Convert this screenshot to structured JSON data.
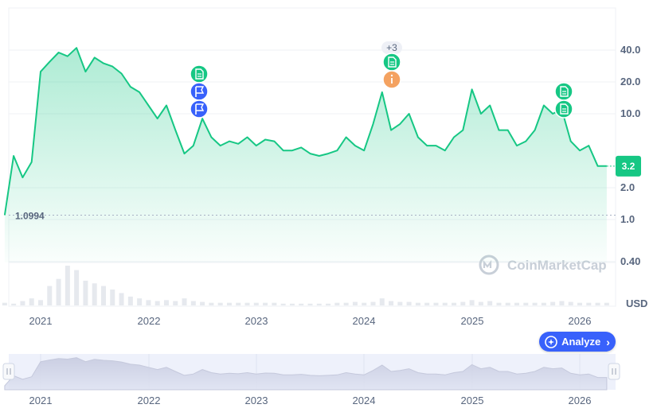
{
  "chart_data": {
    "type": "area",
    "currency": "USD",
    "y_scale": "log",
    "y_ticks": [
      "40.0",
      "20.0",
      "10.0",
      "2.0",
      "1.0",
      "0.40"
    ],
    "x_ticks": [
      "2021",
      "2022",
      "2023",
      "2024",
      "2025",
      "2026"
    ],
    "reference_line": {
      "value": 1.0994,
      "label": "1.0994"
    },
    "current_price": {
      "value": 3.2,
      "label": "3.2"
    },
    "series": [
      {
        "x": [
          "2020-09",
          "2020-10",
          "2020-11",
          "2020-12",
          "2021-01",
          "2021-02",
          "2021-03",
          "2021-04",
          "2021-05",
          "2021-06",
          "2021-07",
          "2021-08",
          "2021-09",
          "2021-10",
          "2021-11",
          "2021-12",
          "2022-01",
          "2022-02",
          "2022-03",
          "2022-04",
          "2022-05",
          "2022-06",
          "2022-07",
          "2022-08",
          "2022-09",
          "2022-10",
          "2022-11",
          "2022-12",
          "2023-01",
          "2023-02",
          "2023-03",
          "2023-04",
          "2023-05",
          "2023-06",
          "2023-07",
          "2023-08",
          "2023-09",
          "2023-10",
          "2023-11",
          "2023-12",
          "2024-01",
          "2024-02",
          "2024-03",
          "2024-04",
          "2024-05",
          "2024-06",
          "2024-07",
          "2024-08",
          "2024-09",
          "2024-10",
          "2024-11",
          "2024-12",
          "2025-01",
          "2025-02",
          "2025-03",
          "2025-04",
          "2025-05",
          "2025-06",
          "2025-07",
          "2025-08",
          "2025-09",
          "2025-10",
          "2025-11",
          "2025-12",
          "2026-01",
          "2026-02",
          "2026-03",
          "2026-04"
        ],
        "values": [
          1.1,
          4.0,
          2.5,
          3.5,
          25,
          31,
          38,
          35,
          42,
          25,
          34,
          30,
          28,
          24,
          18,
          16,
          12,
          9,
          12,
          7,
          4.2,
          5,
          9,
          6,
          5,
          5.5,
          5.2,
          6,
          5,
          5.7,
          5.5,
          4.5,
          4.5,
          4.8,
          4.2,
          4.0,
          4.2,
          4.5,
          6.0,
          5.0,
          4.5,
          8,
          16,
          7,
          8,
          10,
          6,
          5,
          5,
          4.5,
          6,
          7,
          17,
          10,
          12,
          7,
          7,
          5,
          5.5,
          7,
          12,
          10,
          11,
          5.5,
          4.5,
          5,
          3.2,
          3.2
        ]
      }
    ],
    "volume_series": {
      "x": [
        "2020-09",
        "2020-10",
        "2020-11",
        "2020-12",
        "2021-01",
        "2021-02",
        "2021-03",
        "2021-04",
        "2021-05",
        "2021-06",
        "2021-07",
        "2021-08",
        "2021-09",
        "2021-10",
        "2021-11",
        "2021-12",
        "2022-01",
        "2022-02",
        "2022-03",
        "2022-04",
        "2022-05",
        "2022-06",
        "2022-07",
        "2022-08",
        "2022-09",
        "2022-10",
        "2022-11",
        "2022-12",
        "2023-01",
        "2023-02",
        "2023-03",
        "2023-04",
        "2023-05",
        "2023-06",
        "2023-07",
        "2023-08",
        "2023-09",
        "2023-10",
        "2023-11",
        "2023-12",
        "2024-01",
        "2024-02",
        "2024-03",
        "2024-04",
        "2024-05",
        "2024-06",
        "2024-07",
        "2024-08",
        "2024-09",
        "2024-10",
        "2024-11",
        "2024-12",
        "2025-01",
        "2025-02",
        "2025-03",
        "2025-04",
        "2025-05",
        "2025-06",
        "2025-07",
        "2025-08",
        "2025-09",
        "2025-10",
        "2025-11",
        "2025-12",
        "2026-01",
        "2026-02",
        "2026-03",
        "2026-04"
      ],
      "values": [
        3,
        2,
        5,
        8,
        6,
        22,
        30,
        45,
        40,
        28,
        25,
        22,
        18,
        14,
        10,
        8,
        6,
        5,
        6,
        5,
        8,
        5,
        4,
        3,
        3,
        3,
        3,
        3,
        3,
        3,
        3,
        2,
        2,
        2,
        2,
        2,
        2,
        3,
        3,
        4,
        3,
        4,
        8,
        5,
        4,
        4,
        3,
        3,
        3,
        3,
        3,
        4,
        6,
        4,
        5,
        3,
        3,
        3,
        3,
        3,
        3,
        4,
        5,
        4,
        3,
        3,
        3,
        3
      ]
    },
    "events": [
      {
        "x": "2022-06",
        "icons": [
          "document",
          "flag",
          "flag"
        ]
      },
      {
        "x": "2024-03",
        "icons": [
          "document",
          "info"
        ],
        "count": "+3"
      },
      {
        "x": "2025-10",
        "icons": [
          "document",
          "document"
        ]
      }
    ],
    "grid": true,
    "colors": {
      "line": "#16c784",
      "area_top": "#16c784",
      "info": "#f4a261",
      "flag": "#3861fb",
      "axis_text": "#58667e",
      "grid": "#eff2f5"
    }
  },
  "watermark": "CoinMarketCap",
  "analyze_button": {
    "label": "Analyze"
  }
}
